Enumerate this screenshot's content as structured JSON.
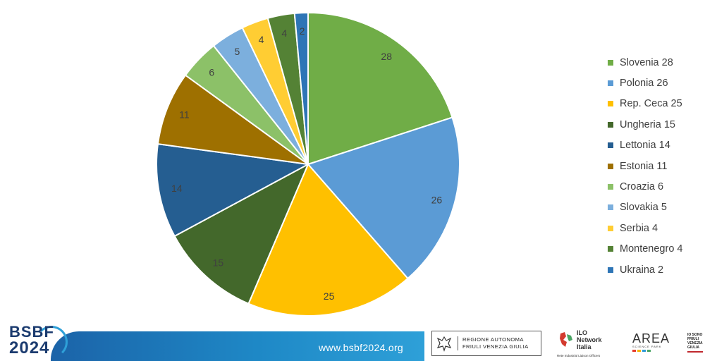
{
  "chart_data": {
    "type": "pie",
    "title": "",
    "categories": [
      "Slovenia",
      "Polonia",
      "Rep. Ceca",
      "Ungheria",
      "Lettonia",
      "Estonia",
      "Croazia",
      "Slovakia",
      "Serbia",
      "Montenegro",
      "Ukraina"
    ],
    "values": [
      28,
      26,
      25,
      15,
      14,
      11,
      6,
      5,
      4,
      4,
      2
    ],
    "colors": [
      "#70ad47",
      "#5b9bd5",
      "#ffc000",
      "#43682b",
      "#255e91",
      "#9e7000",
      "#8cc168",
      "#7cafdd",
      "#ffcd33",
      "#548235",
      "#2e75b6"
    ],
    "legend_placement": "right",
    "legend": [
      "Slovenia 28",
      "Polonia 26",
      "Rep. Ceca 25",
      "Ungheria 15",
      "Lettonia 14",
      "Estonia 11",
      "Croazia 6",
      "Slovakia 5",
      "Serbia 4",
      "Montenegro 4",
      "Ukraina 2"
    ]
  },
  "footer": {
    "logo_line1": "BSBF",
    "logo_line2": "2024",
    "url": "www.bsbf2024.org",
    "regione_line1": "REGIONE AUTONOMA",
    "regione_line2": "FRIULI VENEZIA GIULIA",
    "ilo_line1": "ILO",
    "ilo_line2": "Network",
    "ilo_line3": "Italia",
    "ilo_sub": "Rete Industrial Liaison Officers",
    "area_title": "AREA",
    "area_sub": "SCIENCE PARK",
    "iosono_line1": "IO SONO",
    "iosono_line2": "FRIULI",
    "iosono_line3": "VENEZIA",
    "iosono_line4": "GIULIA"
  }
}
